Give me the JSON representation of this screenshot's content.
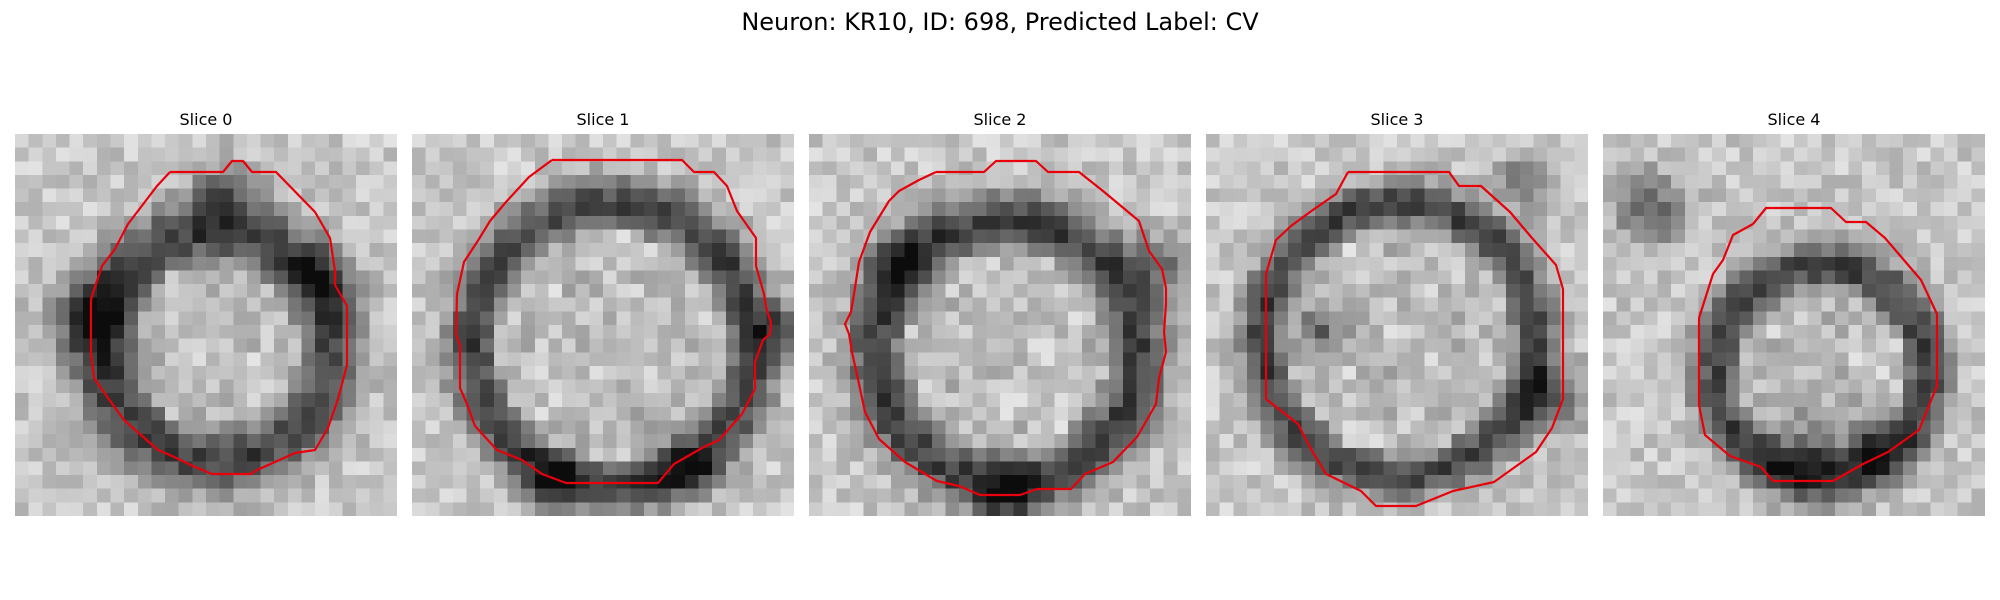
{
  "figure_title": "Neuron: KR10, ID: 698, Predicted Label: CV",
  "outline_color": "#e8000b",
  "colormap": "grayscale",
  "panels": [
    {
      "title": "Slice 0"
    },
    {
      "title": "Slice 1"
    },
    {
      "title": "Slice 2"
    },
    {
      "title": "Slice 3"
    },
    {
      "title": "Slice 4"
    }
  ]
}
